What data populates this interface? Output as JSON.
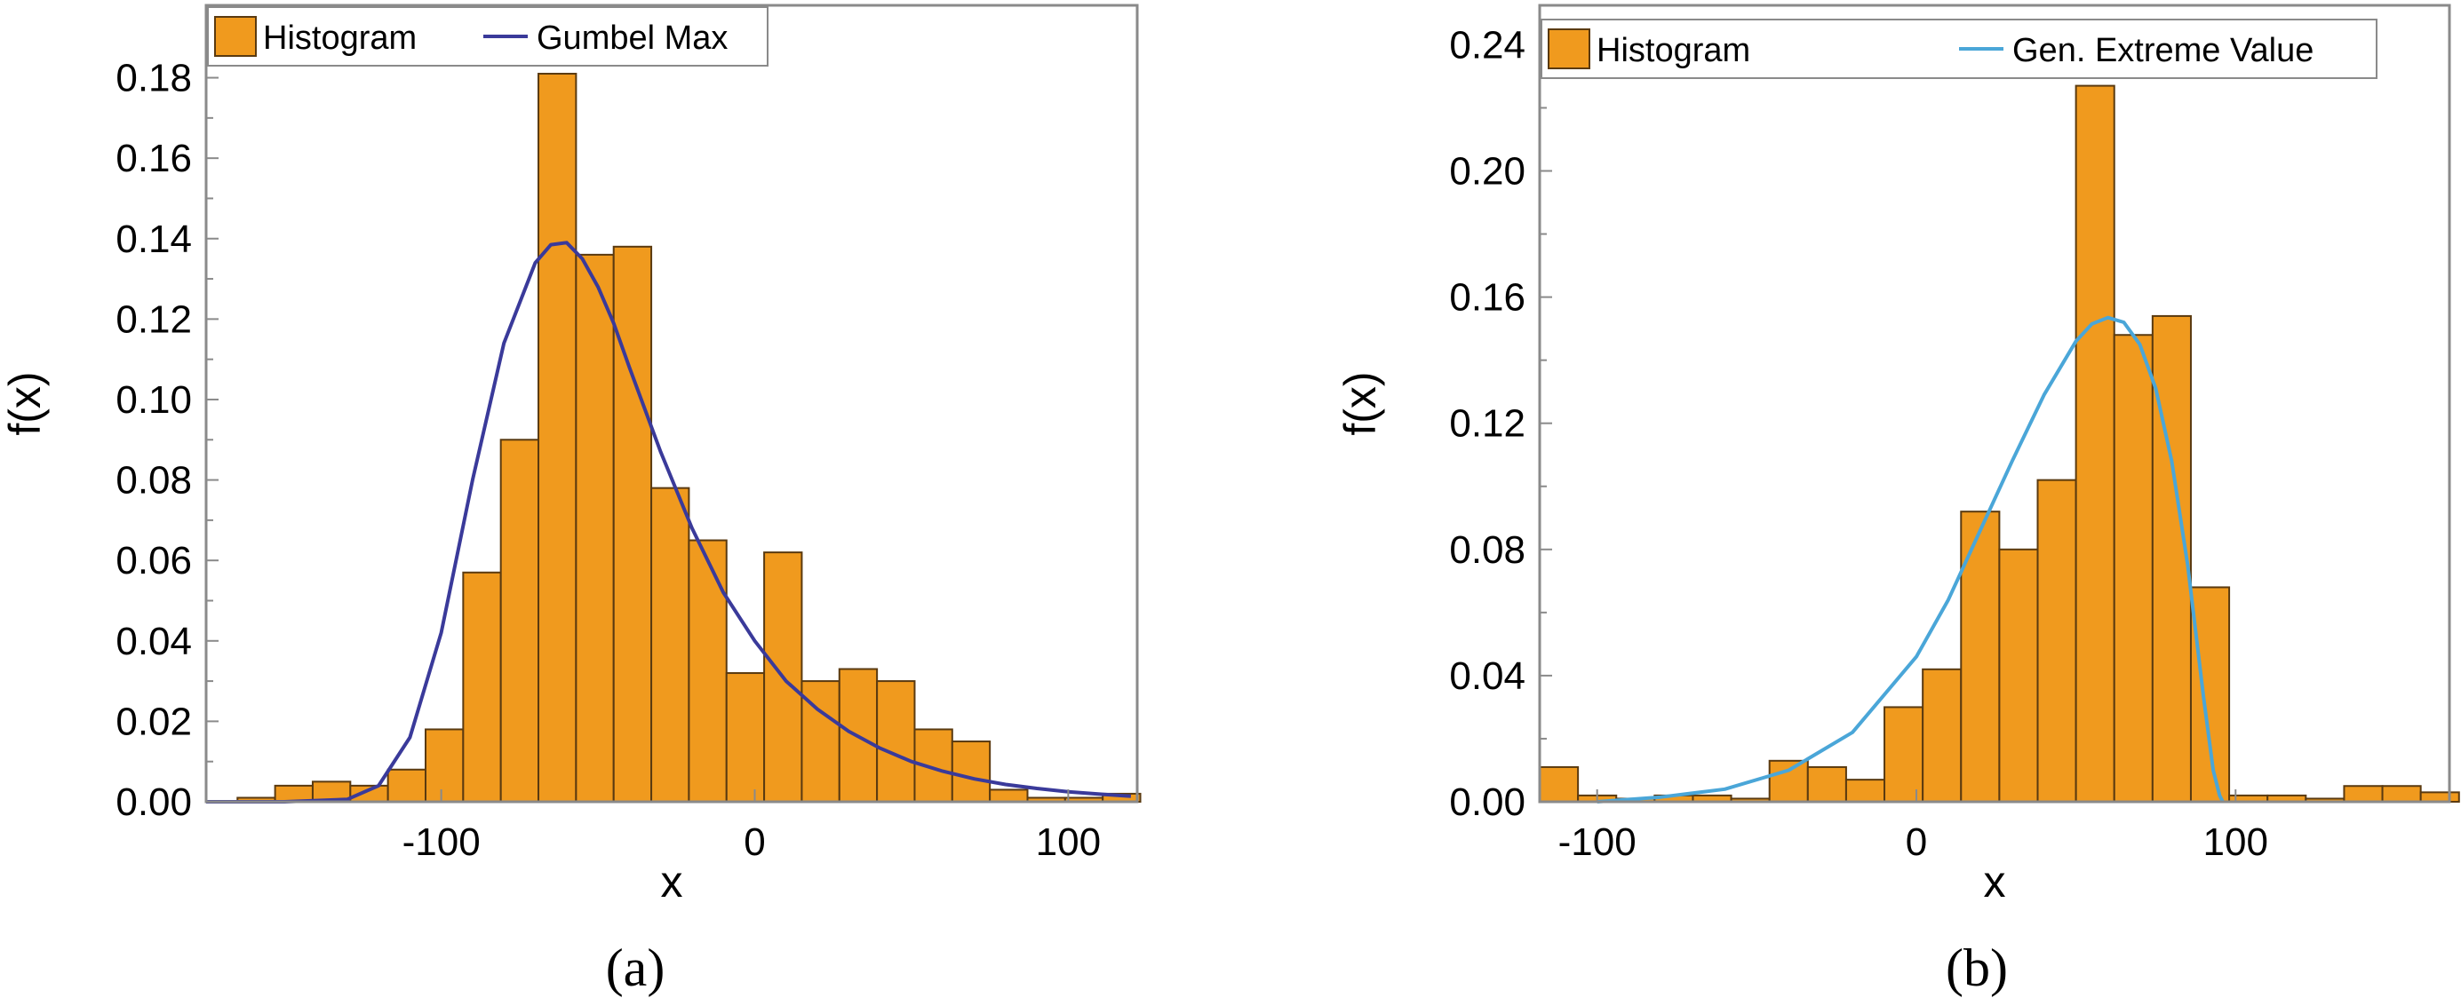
{
  "chart_data": [
    {
      "type": "bar",
      "panel_label": "(a)",
      "xlabel": "x",
      "ylabel": "f(x)",
      "xlim": [
        -175,
        122
      ],
      "ylim": [
        0,
        0.198
      ],
      "x_ticks": [
        "-100",
        "0",
        "100"
      ],
      "x_tick_values": [
        -100,
        0,
        100
      ],
      "y_ticks": [
        "0.00",
        "0.02",
        "0.04",
        "0.06",
        "0.08",
        "0.10",
        "0.12",
        "0.14",
        "0.16",
        "0.18"
      ],
      "y_tick_values": [
        0,
        0.02,
        0.04,
        0.06,
        0.08,
        0.1,
        0.12,
        0.14,
        0.16,
        0.18
      ],
      "minor_y_ticks": [
        0.01,
        0.03,
        0.05,
        0.07,
        0.09,
        0.11,
        0.13,
        0.15,
        0.17,
        0.19
      ],
      "grid": false,
      "legend_position": "top",
      "legend": [
        {
          "label": "Histogram",
          "kind": "bar"
        },
        {
          "label": "Gumbel Max",
          "kind": "line"
        }
      ],
      "bar_color": "#F09A1E",
      "bar_edge_color": "#5A3A10",
      "curve_color": "#3A3A9A",
      "bins": [
        {
          "x0": -165,
          "x1": -153,
          "value": 0.001
        },
        {
          "x0": -153,
          "x1": -141,
          "value": 0.004
        },
        {
          "x0": -141,
          "x1": -129,
          "value": 0.005
        },
        {
          "x0": -129,
          "x1": -117,
          "value": 0.004
        },
        {
          "x0": -117,
          "x1": -105,
          "value": 0.008
        },
        {
          "x0": -105,
          "x1": -93,
          "value": 0.018
        },
        {
          "x0": -93,
          "x1": -81,
          "value": 0.057
        },
        {
          "x0": -81,
          "x1": -69,
          "value": 0.09
        },
        {
          "x0": -69,
          "x1": -57,
          "value": 0.181
        },
        {
          "x0": -57,
          "x1": -45,
          "value": 0.136
        },
        {
          "x0": -45,
          "x1": -33,
          "value": 0.138
        },
        {
          "x0": -33,
          "x1": -21,
          "value": 0.078
        },
        {
          "x0": -21,
          "x1": -9,
          "value": 0.065
        },
        {
          "x0": -9,
          "x1": 3,
          "value": 0.032
        },
        {
          "x0": 3,
          "x1": 15,
          "value": 0.062
        },
        {
          "x0": 15,
          "x1": 27,
          "value": 0.03
        },
        {
          "x0": 27,
          "x1": 39,
          "value": 0.033
        },
        {
          "x0": 39,
          "x1": 51,
          "value": 0.03
        },
        {
          "x0": 51,
          "x1": 63,
          "value": 0.018
        },
        {
          "x0": 63,
          "x1": 75,
          "value": 0.015
        },
        {
          "x0": 75,
          "x1": 87,
          "value": 0.003
        },
        {
          "x0": 87,
          "x1": 99,
          "value": 0.001
        },
        {
          "x0": 99,
          "x1": 111,
          "value": 0.001
        },
        {
          "x0": 111,
          "x1": 123,
          "value": 0.002
        }
      ],
      "curve": {
        "name": "Gumbel Max",
        "x": [
          -175,
          -150,
          -130,
          -120,
          -110,
          -100,
          -90,
          -80,
          -70,
          -65,
          -60,
          -55,
          -50,
          -45,
          -40,
          -30,
          -20,
          -10,
          0,
          10,
          20,
          30,
          40,
          50,
          60,
          70,
          80,
          90,
          100,
          110,
          120
        ],
        "y": [
          0.0,
          0.0,
          0.0006,
          0.004,
          0.016,
          0.042,
          0.08,
          0.114,
          0.134,
          0.1385,
          0.139,
          0.135,
          0.128,
          0.119,
          0.108,
          0.087,
          0.068,
          0.052,
          0.04,
          0.03,
          0.023,
          0.0175,
          0.0133,
          0.01,
          0.0076,
          0.0057,
          0.0043,
          0.0033,
          0.0025,
          0.0019,
          0.0014
        ]
      }
    },
    {
      "type": "bar",
      "panel_label": "(b)",
      "xlabel": "x",
      "ylabel": "f(x)",
      "xlim": [
        -118,
        167
      ],
      "ylim": [
        0,
        0.2525
      ],
      "x_ticks": [
        "-100",
        "0",
        "100"
      ],
      "x_tick_values": [
        -100,
        0,
        100
      ],
      "y_ticks": [
        "0.00",
        "0.04",
        "0.08",
        "0.12",
        "0.16",
        "0.20",
        "0.24"
      ],
      "y_tick_values": [
        0,
        0.04,
        0.08,
        0.12,
        0.16,
        0.2,
        0.24
      ],
      "minor_y_ticks": [
        0.02,
        0.06,
        0.1,
        0.14,
        0.18,
        0.22
      ],
      "grid": false,
      "legend_position": "top",
      "legend": [
        {
          "label": "Histogram",
          "kind": "bar"
        },
        {
          "label": "Gen. Extreme Value",
          "kind": "line"
        }
      ],
      "bar_color": "#F09A1E",
      "bar_edge_color": "#5A3A10",
      "curve_color": "#4AA6D8",
      "bins": [
        {
          "x0": -118,
          "x1": -106,
          "value": 0.011
        },
        {
          "x0": -106,
          "x1": -94,
          "value": 0.002
        },
        {
          "x0": -94,
          "x1": -82,
          "value": 0.001
        },
        {
          "x0": -82,
          "x1": -70,
          "value": 0.002
        },
        {
          "x0": -70,
          "x1": -58,
          "value": 0.002
        },
        {
          "x0": -58,
          "x1": -46,
          "value": 0.001
        },
        {
          "x0": -46,
          "x1": -34,
          "value": 0.013
        },
        {
          "x0": -34,
          "x1": -22,
          "value": 0.011
        },
        {
          "x0": -22,
          "x1": -10,
          "value": 0.007
        },
        {
          "x0": -10,
          "x1": 2,
          "value": 0.03
        },
        {
          "x0": 2,
          "x1": 14,
          "value": 0.042
        },
        {
          "x0": 14,
          "x1": 26,
          "value": 0.092
        },
        {
          "x0": 26,
          "x1": 38,
          "value": 0.08
        },
        {
          "x0": 38,
          "x1": 50,
          "value": 0.102
        },
        {
          "x0": 50,
          "x1": 62,
          "value": 0.227
        },
        {
          "x0": 62,
          "x1": 74,
          "value": 0.148
        },
        {
          "x0": 74,
          "x1": 86,
          "value": 0.154
        },
        {
          "x0": 86,
          "x1": 98,
          "value": 0.068
        },
        {
          "x0": 98,
          "x1": 110,
          "value": 0.002
        },
        {
          "x0": 110,
          "x1": 122,
          "value": 0.002
        },
        {
          "x0": 122,
          "x1": 134,
          "value": 0.001
        },
        {
          "x0": 134,
          "x1": 146,
          "value": 0.005
        },
        {
          "x0": 146,
          "x1": 158,
          "value": 0.005
        },
        {
          "x0": 158,
          "x1": 170,
          "value": 0.003
        }
      ],
      "curve": {
        "name": "Gen. Extreme Value",
        "x": [
          -100,
          -80,
          -60,
          -40,
          -20,
          0,
          10,
          20,
          30,
          40,
          50,
          55,
          60,
          65,
          70,
          75,
          80,
          85,
          90,
          93,
          95,
          96
        ],
        "y": [
          0.0,
          0.0015,
          0.004,
          0.01,
          0.022,
          0.046,
          0.064,
          0.086,
          0.108,
          0.129,
          0.146,
          0.1515,
          0.1535,
          0.152,
          0.145,
          0.131,
          0.108,
          0.075,
          0.033,
          0.01,
          0.002,
          0.0
        ]
      }
    }
  ]
}
